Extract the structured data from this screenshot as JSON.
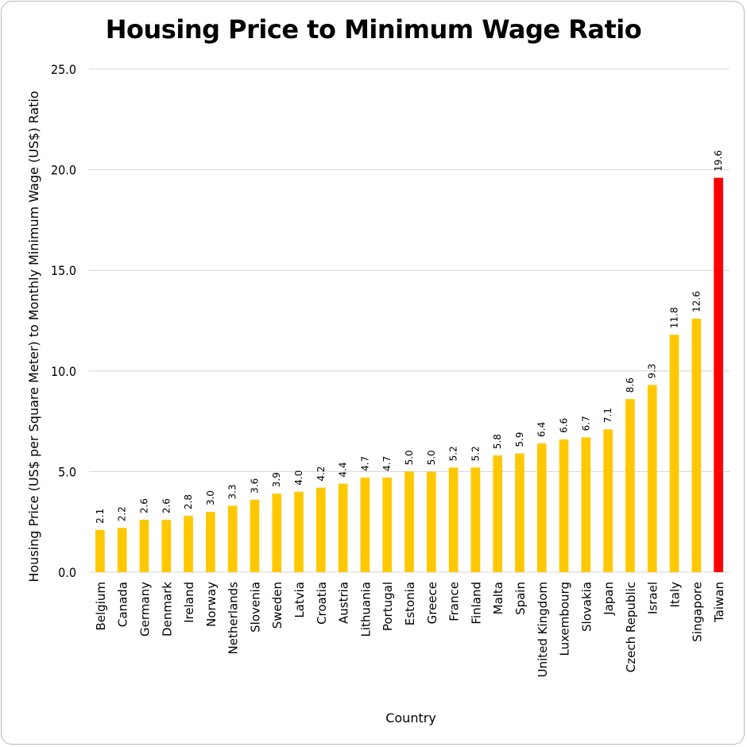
{
  "chart_data": {
    "type": "bar",
    "title": "Housing Price to Minimum Wage Ratio",
    "xlabel": "Country",
    "ylabel": "Housing Price (US$ per Square Meter) to Monthly Minimum Wage (US$) Ratio",
    "ylim": [
      0,
      25
    ],
    "yticks": [
      0,
      5,
      10,
      15,
      20,
      25
    ],
    "ytick_labels": [
      "0.0",
      "5.0",
      "10.0",
      "15.0",
      "20.0",
      "25.0"
    ],
    "grid": true,
    "categories": [
      "Belgium",
      "Canada",
      "Germany",
      "Denmark",
      "Ireland",
      "Norway",
      "Netherlands",
      "Slovenia",
      "Sweden",
      "Latvia",
      "Croatia",
      "Austria",
      "Lithuania",
      "Portugal",
      "Estonia",
      "Greece",
      "France",
      "Finland",
      "Malta",
      "Spain",
      "United Kingdom",
      "Luxembourg",
      "Slovakia",
      "Japan",
      "Czech Republic",
      "Israel",
      "Italy",
      "Singapore",
      "Taiwan"
    ],
    "values": [
      2.1,
      2.2,
      2.6,
      2.6,
      2.8,
      3.0,
      3.3,
      3.6,
      3.9,
      4.0,
      4.2,
      4.4,
      4.7,
      4.7,
      5.0,
      5.0,
      5.2,
      5.2,
      5.8,
      5.9,
      6.4,
      6.6,
      6.7,
      7.1,
      8.6,
      9.3,
      11.8,
      12.6,
      19.6
    ],
    "value_labels": [
      "2.1",
      "2.2",
      "2.6",
      "2.6",
      "2.8",
      "3.0",
      "3.3",
      "3.6",
      "3.9",
      "4.0",
      "4.2",
      "4.4",
      "4.7",
      "4.7",
      "5.0",
      "5.0",
      "5.2",
      "5.2",
      "5.8",
      "5.9",
      "6.4",
      "6.6",
      "6.7",
      "7.1",
      "8.6",
      "9.3",
      "11.8",
      "12.6",
      "19.6"
    ],
    "colors": {
      "default": "#ffc800",
      "highlight": "#ff0000",
      "gridline": "#d4d4d4"
    },
    "highlight_category": "Taiwan"
  }
}
